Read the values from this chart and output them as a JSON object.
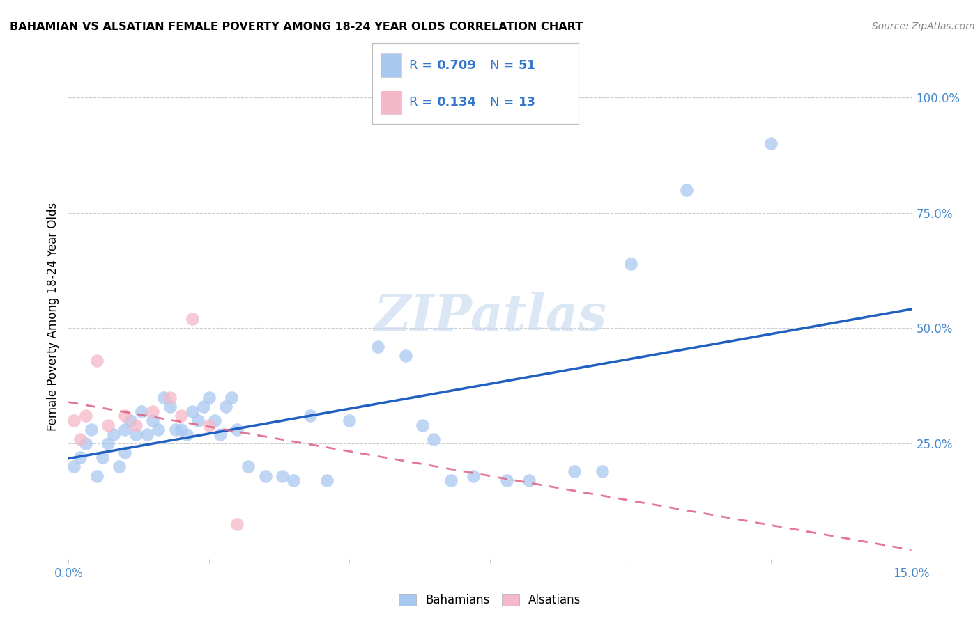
{
  "title": "BAHAMIAN VS ALSATIAN FEMALE POVERTY AMONG 18-24 YEAR OLDS CORRELATION CHART",
  "source": "Source: ZipAtlas.com",
  "ylabel": "Female Poverty Among 18-24 Year Olds",
  "xlim": [
    0.0,
    0.15
  ],
  "ylim": [
    0.0,
    1.05
  ],
  "bahamian_R": 0.709,
  "bahamian_N": 51,
  "alsatian_R": 0.134,
  "alsatian_N": 13,
  "bahamian_color": "#a8c8f0",
  "alsatian_color": "#f5b8c8",
  "bahamian_line_color": "#2060c0",
  "alsatian_line_color": "#e06080",
  "watermark_text": "ZIPatlas",
  "watermark_color": "#c5d8f0",
  "bahamian_x": [
    0.001,
    0.002,
    0.003,
    0.004,
    0.005,
    0.006,
    0.007,
    0.008,
    0.009,
    0.01,
    0.01,
    0.011,
    0.012,
    0.013,
    0.014,
    0.015,
    0.016,
    0.017,
    0.018,
    0.019,
    0.02,
    0.021,
    0.022,
    0.023,
    0.024,
    0.025,
    0.026,
    0.027,
    0.028,
    0.029,
    0.03,
    0.032,
    0.035,
    0.038,
    0.04,
    0.043,
    0.046,
    0.05,
    0.055,
    0.06,
    0.063,
    0.065,
    0.068,
    0.072,
    0.078,
    0.082,
    0.09,
    0.095,
    0.1,
    0.11,
    0.125
  ],
  "bahamian_y": [
    0.2,
    0.22,
    0.25,
    0.28,
    0.18,
    0.22,
    0.25,
    0.27,
    0.2,
    0.23,
    0.28,
    0.3,
    0.27,
    0.32,
    0.27,
    0.3,
    0.28,
    0.35,
    0.33,
    0.28,
    0.28,
    0.27,
    0.32,
    0.3,
    0.33,
    0.35,
    0.3,
    0.27,
    0.33,
    0.35,
    0.28,
    0.2,
    0.18,
    0.18,
    0.17,
    0.31,
    0.17,
    0.3,
    0.46,
    0.44,
    0.29,
    0.26,
    0.17,
    0.18,
    0.17,
    0.17,
    0.19,
    0.19,
    0.64,
    0.8,
    0.9
  ],
  "alsatian_x": [
    0.001,
    0.002,
    0.003,
    0.005,
    0.007,
    0.01,
    0.012,
    0.015,
    0.018,
    0.02,
    0.022,
    0.025,
    0.03
  ],
  "alsatian_y": [
    0.3,
    0.26,
    0.31,
    0.43,
    0.29,
    0.31,
    0.29,
    0.32,
    0.35,
    0.31,
    0.52,
    0.29,
    0.075
  ],
  "legend_labels": [
    "Bahamians",
    "Alsatians"
  ],
  "background_color": "#ffffff",
  "grid_color": "#cccccc",
  "y_tick_vals": [
    0.25,
    0.5,
    0.75,
    1.0
  ]
}
